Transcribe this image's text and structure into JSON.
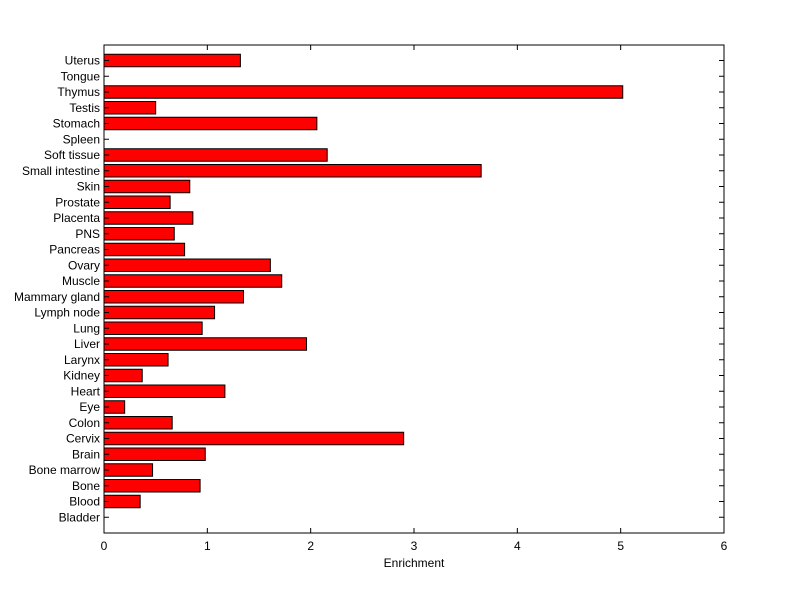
{
  "chart_data": {
    "type": "bar",
    "orientation": "horizontal",
    "xlabel": "Enrichment",
    "ylabel": "",
    "title": "",
    "xlim": [
      0,
      6
    ],
    "xticks": [
      0,
      1,
      2,
      3,
      4,
      5,
      6
    ],
    "grid": false,
    "bar_color": "#ff0000",
    "bar_edge_color": "#000000",
    "categories": [
      "Uterus",
      "Tongue",
      "Thymus",
      "Testis",
      "Stomach",
      "Spleen",
      "Soft tissue",
      "Small intestine",
      "Skin",
      "Prostate",
      "Placenta",
      "PNS",
      "Pancreas",
      "Ovary",
      "Muscle",
      "Mammary gland",
      "Lymph node",
      "Lung",
      "Liver",
      "Larynx",
      "Kidney",
      "Heart",
      "Eye",
      "Colon",
      "Cervix",
      "Brain",
      "Bone marrow",
      "Bone",
      "Blood",
      "Bladder"
    ],
    "values": [
      1.32,
      0,
      5.02,
      0.5,
      2.06,
      0,
      2.16,
      3.65,
      0.83,
      0.64,
      0.86,
      0.68,
      0.78,
      1.61,
      1.72,
      1.35,
      1.07,
      0.95,
      1.96,
      0.62,
      0.37,
      1.17,
      0.2,
      0.66,
      2.9,
      0.98,
      0.47,
      0.93,
      0.35,
      0
    ]
  }
}
